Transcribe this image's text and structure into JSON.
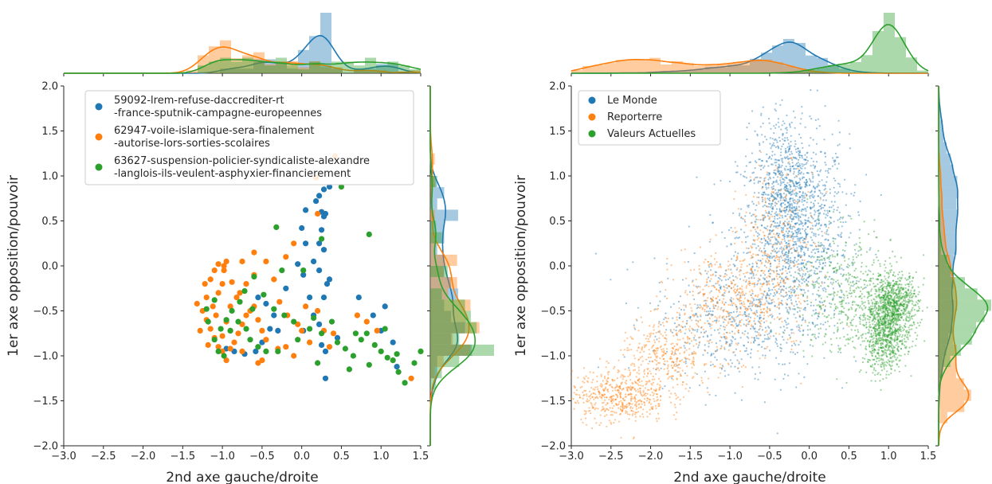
{
  "chart_data": [
    {
      "type": "scatter",
      "xlabel": "2nd axe gauche/droite",
      "ylabel": "1er axe opposition/pouvoir",
      "xlim": [
        -3.0,
        1.5
      ],
      "ylim": [
        -2.0,
        2.0
      ],
      "xticks": [
        "−3.0",
        "−2.5",
        "−2.0",
        "−1.5",
        "−1.0",
        "−0.5",
        "0.0",
        "0.5",
        "1.0",
        "1.5"
      ],
      "yticks": [
        "−2.0",
        "−1.5",
        "−1.0",
        "−0.5",
        "0.0",
        "0.5",
        "1.0",
        "1.5",
        "2.0"
      ],
      "legend_position": "top-left",
      "marginals": "histogram + kde on top and right",
      "series": [
        {
          "name": "59092-lrem-refuse-daccrediter-rt\n-france-sputnik-campagne-europeennes",
          "color": "#1f77b4",
          "points": [
            [
              0.28,
              0.85
            ],
            [
              0.35,
              0.88
            ],
            [
              0.22,
              0.78
            ],
            [
              0.18,
              0.72
            ],
            [
              0.25,
              0.6
            ],
            [
              0.3,
              0.58
            ],
            [
              0.05,
              0.62
            ],
            [
              0.0,
              0.42
            ],
            [
              0.25,
              0.4
            ],
            [
              0.28,
              0.55
            ],
            [
              0.22,
              0.25
            ],
            [
              0.28,
              0.18
            ],
            [
              0.05,
              0.25
            ],
            [
              -0.05,
              0.02
            ],
            [
              0.22,
              -0.05
            ],
            [
              0.35,
              -0.15
            ],
            [
              0.32,
              -0.2
            ],
            [
              0.1,
              -0.35
            ],
            [
              0.15,
              -0.55
            ],
            [
              0.22,
              -0.65
            ],
            [
              0.02,
              -0.72
            ],
            [
              -0.35,
              -0.55
            ],
            [
              -0.45,
              -0.42
            ],
            [
              -0.55,
              -0.35
            ],
            [
              -0.4,
              -0.7
            ],
            [
              -0.5,
              -0.85
            ],
            [
              -0.58,
              -0.95
            ],
            [
              -0.72,
              -0.98
            ],
            [
              -0.85,
              -0.95
            ],
            [
              -0.95,
              -0.92
            ],
            [
              -0.3,
              -0.72
            ],
            [
              0.25,
              -0.88
            ],
            [
              0.3,
              -0.95
            ],
            [
              0.45,
              -0.8
            ],
            [
              0.72,
              -0.35
            ],
            [
              0.9,
              -0.55
            ],
            [
              1.05,
              -0.45
            ],
            [
              1.0,
              -0.72
            ],
            [
              1.15,
              -0.85
            ],
            [
              1.2,
              -1.12
            ],
            [
              0.3,
              -1.25
            ],
            [
              0.28,
              -0.35
            ],
            [
              0.02,
              -0.1
            ],
            [
              -0.2,
              -0.25
            ],
            [
              0.15,
              0.05
            ]
          ]
        },
        {
          "name": "62947-voile-islamique-sera-finalement\n-autorise-lors-sorties-scolaires",
          "color": "#ff7f0e",
          "points": [
            [
              0.42,
              1.22
            ],
            [
              0.18,
              0.98
            ],
            [
              0.2,
              0.58
            ],
            [
              -0.1,
              0.25
            ],
            [
              -0.2,
              0.1
            ],
            [
              -0.6,
              0.15
            ],
            [
              -0.75,
              0.05
            ],
            [
              -0.95,
              0.05
            ],
            [
              -1.05,
              0.02
            ],
            [
              -1.1,
              -0.05
            ],
            [
              -1.15,
              -0.15
            ],
            [
              -0.98,
              -0.05
            ],
            [
              -1.0,
              -0.2
            ],
            [
              -1.05,
              -0.3
            ],
            [
              -1.2,
              -0.35
            ],
            [
              -1.32,
              -0.42
            ],
            [
              -1.25,
              -0.5
            ],
            [
              -1.2,
              -0.6
            ],
            [
              -1.15,
              -0.7
            ],
            [
              -1.1,
              -0.8
            ],
            [
              -1.05,
              -0.9
            ],
            [
              -1.0,
              -0.95
            ],
            [
              -0.95,
              -1.05
            ],
            [
              -0.9,
              -0.92
            ],
            [
              -0.85,
              -0.85
            ],
            [
              -0.8,
              -0.75
            ],
            [
              -0.75,
              -0.65
            ],
            [
              -0.7,
              -0.55
            ],
            [
              -0.65,
              -0.5
            ],
            [
              -0.6,
              -0.45
            ],
            [
              -0.55,
              -0.6
            ],
            [
              -0.5,
              -0.72
            ],
            [
              -0.45,
              -0.82
            ],
            [
              -0.5,
              -1.05
            ],
            [
              -0.55,
              -1.08
            ],
            [
              -0.3,
              -0.92
            ],
            [
              -0.2,
              -0.9
            ],
            [
              -0.1,
              -1.0
            ],
            [
              0.0,
              -0.72
            ],
            [
              0.05,
              -0.45
            ],
            [
              0.2,
              -0.5
            ],
            [
              0.28,
              -0.72
            ],
            [
              0.4,
              -0.75
            ],
            [
              0.35,
              -0.9
            ],
            [
              0.7,
              -0.55
            ],
            [
              0.82,
              -0.62
            ],
            [
              0.95,
              -0.72
            ],
            [
              1.38,
              -1.25
            ],
            [
              -0.82,
              -0.35
            ],
            [
              -0.9,
              -0.45
            ],
            [
              -1.08,
              -0.55
            ],
            [
              -1.12,
              -0.45
            ],
            [
              -0.95,
              -0.62
            ],
            [
              -0.9,
              -0.72
            ],
            [
              -1.0,
              -0.78
            ],
            [
              -1.18,
              -0.88
            ],
            [
              -1.28,
              -0.72
            ],
            [
              -0.78,
              -0.3
            ],
            [
              -0.7,
              -0.2
            ],
            [
              -0.6,
              -0.1
            ],
            [
              -0.45,
              0.05
            ],
            [
              -0.35,
              -0.15
            ],
            [
              -0.28,
              -0.4
            ],
            [
              -0.18,
              -0.55
            ],
            [
              -0.05,
              -0.65
            ],
            [
              0.1,
              -0.85
            ],
            [
              -0.98,
              0.0
            ],
            [
              -1.22,
              -0.2
            ],
            [
              -0.88,
              -0.18
            ],
            [
              -0.75,
              -0.95
            ]
          ]
        },
        {
          "name": "63627-suspension-policier-syndicaliste-alexandre\n-langlois-ils-veulent-asphyxier-financierement",
          "color": "#2ca02c",
          "points": [
            [
              0.5,
              0.88
            ],
            [
              -0.32,
              0.43
            ],
            [
              0.85,
              0.35
            ],
            [
              0.25,
              0.3
            ],
            [
              0.02,
              -0.05
            ],
            [
              -0.25,
              -0.05
            ],
            [
              -0.6,
              -0.12
            ],
            [
              -0.48,
              -0.32
            ],
            [
              -0.35,
              -0.48
            ],
            [
              -0.22,
              -0.55
            ],
            [
              -0.1,
              -0.62
            ],
            [
              0.1,
              -0.7
            ],
            [
              0.25,
              -0.75
            ],
            [
              0.45,
              -0.85
            ],
            [
              0.55,
              -0.92
            ],
            [
              0.65,
              -1.0
            ],
            [
              0.75,
              -0.82
            ],
            [
              0.82,
              -0.75
            ],
            [
              0.92,
              -0.88
            ],
            [
              1.0,
              -0.95
            ],
            [
              1.08,
              -1.02
            ],
            [
              1.15,
              -1.05
            ],
            [
              1.22,
              -1.18
            ],
            [
              1.3,
              -1.3
            ],
            [
              1.42,
              -1.08
            ],
            [
              1.5,
              -0.95
            ],
            [
              1.2,
              -0.98
            ],
            [
              0.85,
              -1.1
            ],
            [
              0.6,
              -1.15
            ],
            [
              -0.78,
              -0.4
            ],
            [
              -0.88,
              -0.5
            ],
            [
              -0.95,
              -0.6
            ],
            [
              -1.02,
              -0.7
            ],
            [
              -1.1,
              -0.82
            ],
            [
              -1.05,
              -0.95
            ],
            [
              -0.98,
              -1.0
            ],
            [
              -0.9,
              -0.72
            ],
            [
              -0.8,
              -0.62
            ],
            [
              -0.7,
              -0.7
            ],
            [
              -0.65,
              -0.82
            ],
            [
              -0.55,
              -0.9
            ],
            [
              -0.45,
              -0.95
            ],
            [
              -0.3,
              -0.95
            ],
            [
              -1.1,
              -0.38
            ],
            [
              -1.2,
              -0.48
            ],
            [
              -1.18,
              -0.62
            ],
            [
              -0.72,
              -0.28
            ],
            [
              -0.62,
              -0.48
            ],
            [
              0.15,
              -0.58
            ],
            [
              0.38,
              -0.62
            ],
            [
              0.68,
              -0.75
            ],
            [
              1.05,
              -0.7
            ],
            [
              -0.05,
              -0.82
            ],
            [
              0.2,
              -1.08
            ]
          ]
        }
      ]
    },
    {
      "type": "scatter",
      "xlabel": "2nd axe gauche/droite",
      "ylabel": "1er axe opposition/pouvoir",
      "xlim": [
        -3.0,
        1.5
      ],
      "ylim": [
        -2.0,
        2.0
      ],
      "xticks": [
        "−3.0",
        "−2.5",
        "−2.0",
        "−1.5",
        "−1.0",
        "−0.5",
        "0.0",
        "0.5",
        "1.0",
        "1.5"
      ],
      "yticks": [
        "−2.0",
        "−1.5",
        "−1.0",
        "−0.5",
        "0.0",
        "0.5",
        "1.0",
        "1.5",
        "2.0"
      ],
      "legend_position": "top-left",
      "marginals": "histogram + kde on top and right",
      "series": [
        {
          "name": "Le Monde",
          "color": "#1f77b4",
          "cloud": [
            {
              "mx": -0.2,
              "my": 0.35,
              "sx": 0.35,
              "sy": 0.55,
              "n": 1400
            },
            {
              "mx": -1.0,
              "my": -0.6,
              "sx": 0.5,
              "sy": 0.35,
              "n": 500
            },
            {
              "mx": -0.3,
              "my": 1.0,
              "sx": 0.2,
              "sy": 0.35,
              "n": 350
            }
          ]
        },
        {
          "name": "Reporterre",
          "color": "#ff7f0e",
          "cloud": [
            {
              "mx": -2.4,
              "my": -1.45,
              "sx": 0.3,
              "sy": 0.15,
              "n": 500
            },
            {
              "mx": -1.8,
              "my": -1.0,
              "sx": 0.3,
              "sy": 0.2,
              "n": 350
            },
            {
              "mx": -1.0,
              "my": -0.4,
              "sx": 0.35,
              "sy": 0.3,
              "n": 450
            },
            {
              "mx": -0.4,
              "my": 0.2,
              "sx": 0.25,
              "sy": 0.45,
              "n": 300
            }
          ]
        },
        {
          "name": "Valeurs Actuelles",
          "color": "#2ca02c",
          "cloud": [
            {
              "mx": 1.05,
              "my": -0.45,
              "sx": 0.16,
              "sy": 0.18,
              "n": 900
            },
            {
              "mx": 0.95,
              "my": -0.85,
              "sx": 0.14,
              "sy": 0.18,
              "n": 500
            },
            {
              "mx": 0.45,
              "my": -0.3,
              "sx": 0.3,
              "sy": 0.35,
              "n": 450
            }
          ]
        }
      ]
    }
  ]
}
